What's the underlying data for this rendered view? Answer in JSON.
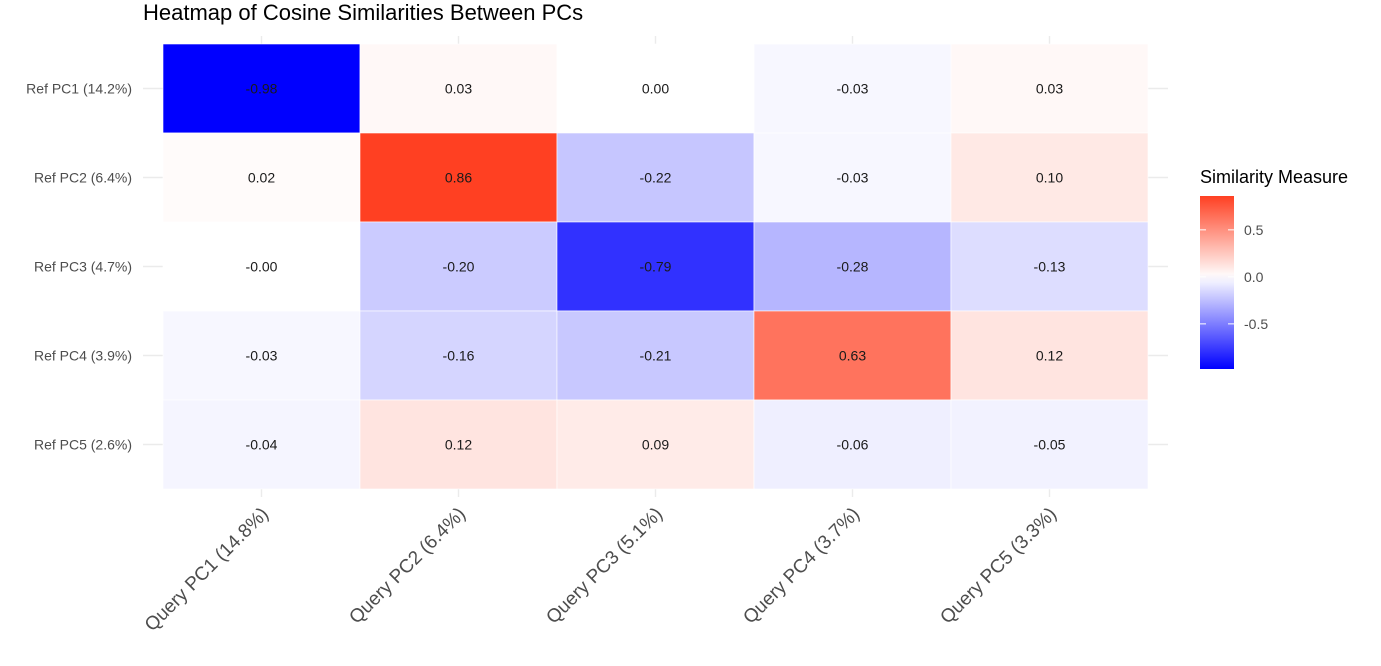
{
  "chart_data": {
    "type": "heatmap",
    "title": "Heatmap of Cosine Similarities Between PCs",
    "x_categories": [
      "Query PC1 (14.8%)",
      "Query PC2 (6.4%)",
      "Query PC3 (5.1%)",
      "Query PC4 (3.7%)",
      "Query PC5 (3.3%)"
    ],
    "y_categories": [
      "Ref PC1 (14.2%)",
      "Ref PC2 (6.4%)",
      "Ref PC3 (4.7%)",
      "Ref PC4 (3.9%)",
      "Ref PC5 (2.6%)"
    ],
    "values": [
      [
        -0.98,
        0.03,
        0.0,
        -0.03,
        0.03
      ],
      [
        0.02,
        0.86,
        -0.22,
        -0.03,
        0.1
      ],
      [
        -0.0,
        -0.2,
        -0.79,
        -0.28,
        -0.13
      ],
      [
        -0.03,
        -0.16,
        -0.21,
        0.63,
        0.12
      ],
      [
        -0.04,
        0.12,
        0.09,
        -0.06,
        -0.05
      ]
    ],
    "value_labels": [
      [
        "-0.98",
        "0.03",
        "0.00",
        "-0.03",
        "0.03"
      ],
      [
        "0.02",
        "0.86",
        "-0.22",
        "-0.03",
        "0.10"
      ],
      [
        "-0.00",
        "-0.20",
        "-0.79",
        "-0.28",
        "-0.13"
      ],
      [
        "-0.03",
        "-0.16",
        "-0.21",
        "0.63",
        "0.12"
      ],
      [
        "-0.04",
        "0.12",
        "0.09",
        "-0.06",
        "-0.05"
      ]
    ],
    "legend": {
      "title": "Similarity Measure",
      "placement": "right",
      "range": [
        -0.98,
        0.86
      ],
      "ticks": [
        0.5,
        0.0,
        -0.5
      ],
      "tick_labels": [
        "0.5",
        "0.0",
        "-0.5"
      ]
    },
    "colors": {
      "low": "#0000ff",
      "mid": "#ffffff",
      "high": "#ff4022",
      "grid": "#ebebeb"
    },
    "grid": true
  }
}
